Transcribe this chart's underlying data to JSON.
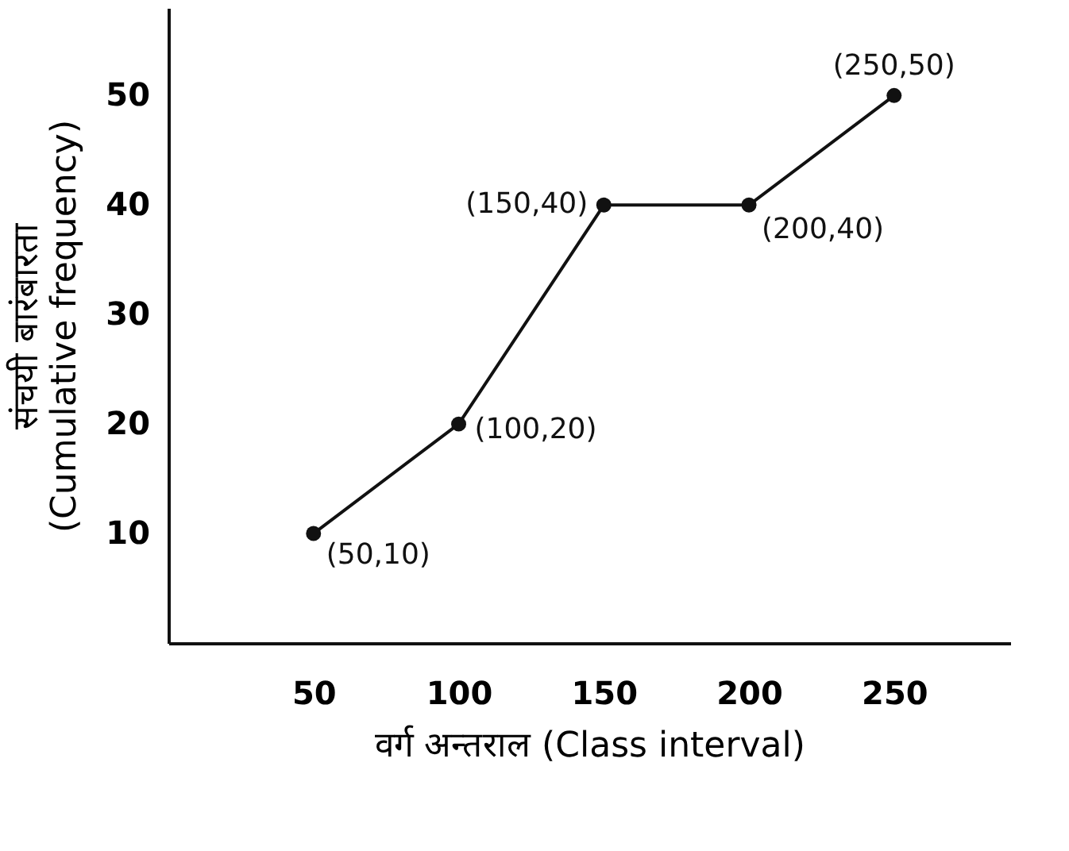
{
  "chart_data": {
    "type": "line",
    "xlabel": "वर्ग अन्तराल (Class interval)",
    "ylabel": "संचयी बारंबारता\n(Cumulative frequency)",
    "x": [
      50,
      100,
      150,
      200,
      250
    ],
    "series": [
      {
        "color": "#111111",
        "values": [
          10,
          20,
          40,
          40,
          50
        ]
      }
    ],
    "xlim": [
      0,
      290
    ],
    "ylim": [
      0,
      58
    ],
    "xticks": [
      50,
      100,
      150,
      200,
      250
    ],
    "yticks": [
      10,
      20,
      30,
      40,
      50
    ],
    "grid": false,
    "marker": "circle",
    "line_style": "solid",
    "annotations": [
      {
        "text": "(50,10)",
        "x": 50,
        "y": 10
      },
      {
        "text": "(100,20)",
        "x": 100,
        "y": 20
      },
      {
        "text": "(150,40)",
        "x": 150,
        "y": 40
      },
      {
        "text": "(200,40)",
        "x": 200,
        "y": 40
      },
      {
        "text": "(250,50)",
        "x": 250,
        "y": 50
      }
    ]
  }
}
